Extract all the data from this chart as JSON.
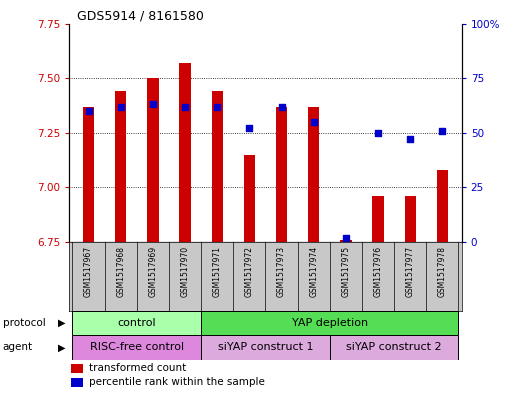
{
  "title": "GDS5914 / 8161580",
  "samples": [
    "GSM1517967",
    "GSM1517968",
    "GSM1517969",
    "GSM1517970",
    "GSM1517971",
    "GSM1517972",
    "GSM1517973",
    "GSM1517974",
    "GSM1517975",
    "GSM1517976",
    "GSM1517977",
    "GSM1517978"
  ],
  "transformed_count": [
    7.37,
    7.44,
    7.5,
    7.57,
    7.44,
    7.15,
    7.37,
    7.37,
    6.76,
    6.96,
    6.96,
    7.08
  ],
  "percentile_rank": [
    60,
    62,
    63,
    62,
    62,
    52,
    62,
    55,
    2,
    50,
    47,
    51
  ],
  "bar_bottom": 6.75,
  "ylim_left": [
    6.75,
    7.75
  ],
  "ylim_right": [
    0,
    100
  ],
  "yticks_left": [
    6.75,
    7.0,
    7.25,
    7.5,
    7.75
  ],
  "yticks_right": [
    0,
    25,
    50,
    75,
    100
  ],
  "ytick_labels_right": [
    "0",
    "25",
    "50",
    "75",
    "100%"
  ],
  "bar_color": "#cc0000",
  "dot_color": "#0000cc",
  "protocol_groups": [
    {
      "label": "control",
      "start": 0,
      "end": 3,
      "color": "#aaffaa"
    },
    {
      "label": "YAP depletion",
      "start": 4,
      "end": 11,
      "color": "#55dd55"
    }
  ],
  "agent_groups": [
    {
      "label": "RISC-free control",
      "start": 0,
      "end": 3,
      "color": "#dd88dd"
    },
    {
      "label": "siYAP construct 1",
      "start": 4,
      "end": 7,
      "color": "#ddaadd"
    },
    {
      "label": "siYAP construct 2",
      "start": 8,
      "end": 11,
      "color": "#ddaadd"
    }
  ],
  "protocol_label": "protocol",
  "agent_label": "agent",
  "legend_red": "transformed count",
  "legend_blue": "percentile rank within the sample",
  "bar_width": 0.35,
  "tick_label_color_left": "#cc0000",
  "tick_label_color_right": "#0000cc",
  "names_bg_color": "#c8c8c8",
  "grid_dotted_color": "#444444"
}
